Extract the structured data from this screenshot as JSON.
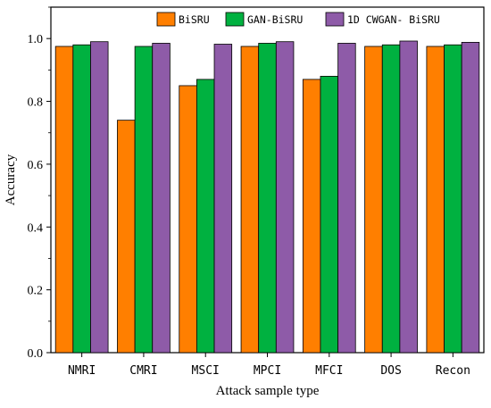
{
  "chart_data": {
    "type": "bar",
    "xlabel": "Attack sample type",
    "ylabel": "Accuracy",
    "ylim": [
      0,
      1.1
    ],
    "yticks": [
      0.0,
      0.2,
      0.4,
      0.6,
      0.8,
      1.0
    ],
    "ytick_labels": [
      "0.0",
      "0.2",
      "0.4",
      "0.6",
      "0.8",
      "1.0"
    ],
    "categories": [
      "NMRI",
      "CMRI",
      "MSCI",
      "MPCI",
      "MFCI",
      "DOS",
      "Recon"
    ],
    "series": [
      {
        "name": "BiSRU",
        "color": "#FF7F00",
        "values": [
          0.975,
          0.74,
          0.85,
          0.975,
          0.87,
          0.975,
          0.975
        ]
      },
      {
        "name": "GAN-BiSRU",
        "color": "#00B140",
        "values": [
          0.98,
          0.975,
          0.87,
          0.985,
          0.88,
          0.98,
          0.98
        ]
      },
      {
        "name": "1D CWGAN- BiSRU",
        "color": "#8E5BA8",
        "values": [
          0.99,
          0.985,
          0.982,
          0.99,
          0.985,
          0.992,
          0.988
        ]
      }
    ],
    "legend_position": "top-right",
    "grid": false
  }
}
